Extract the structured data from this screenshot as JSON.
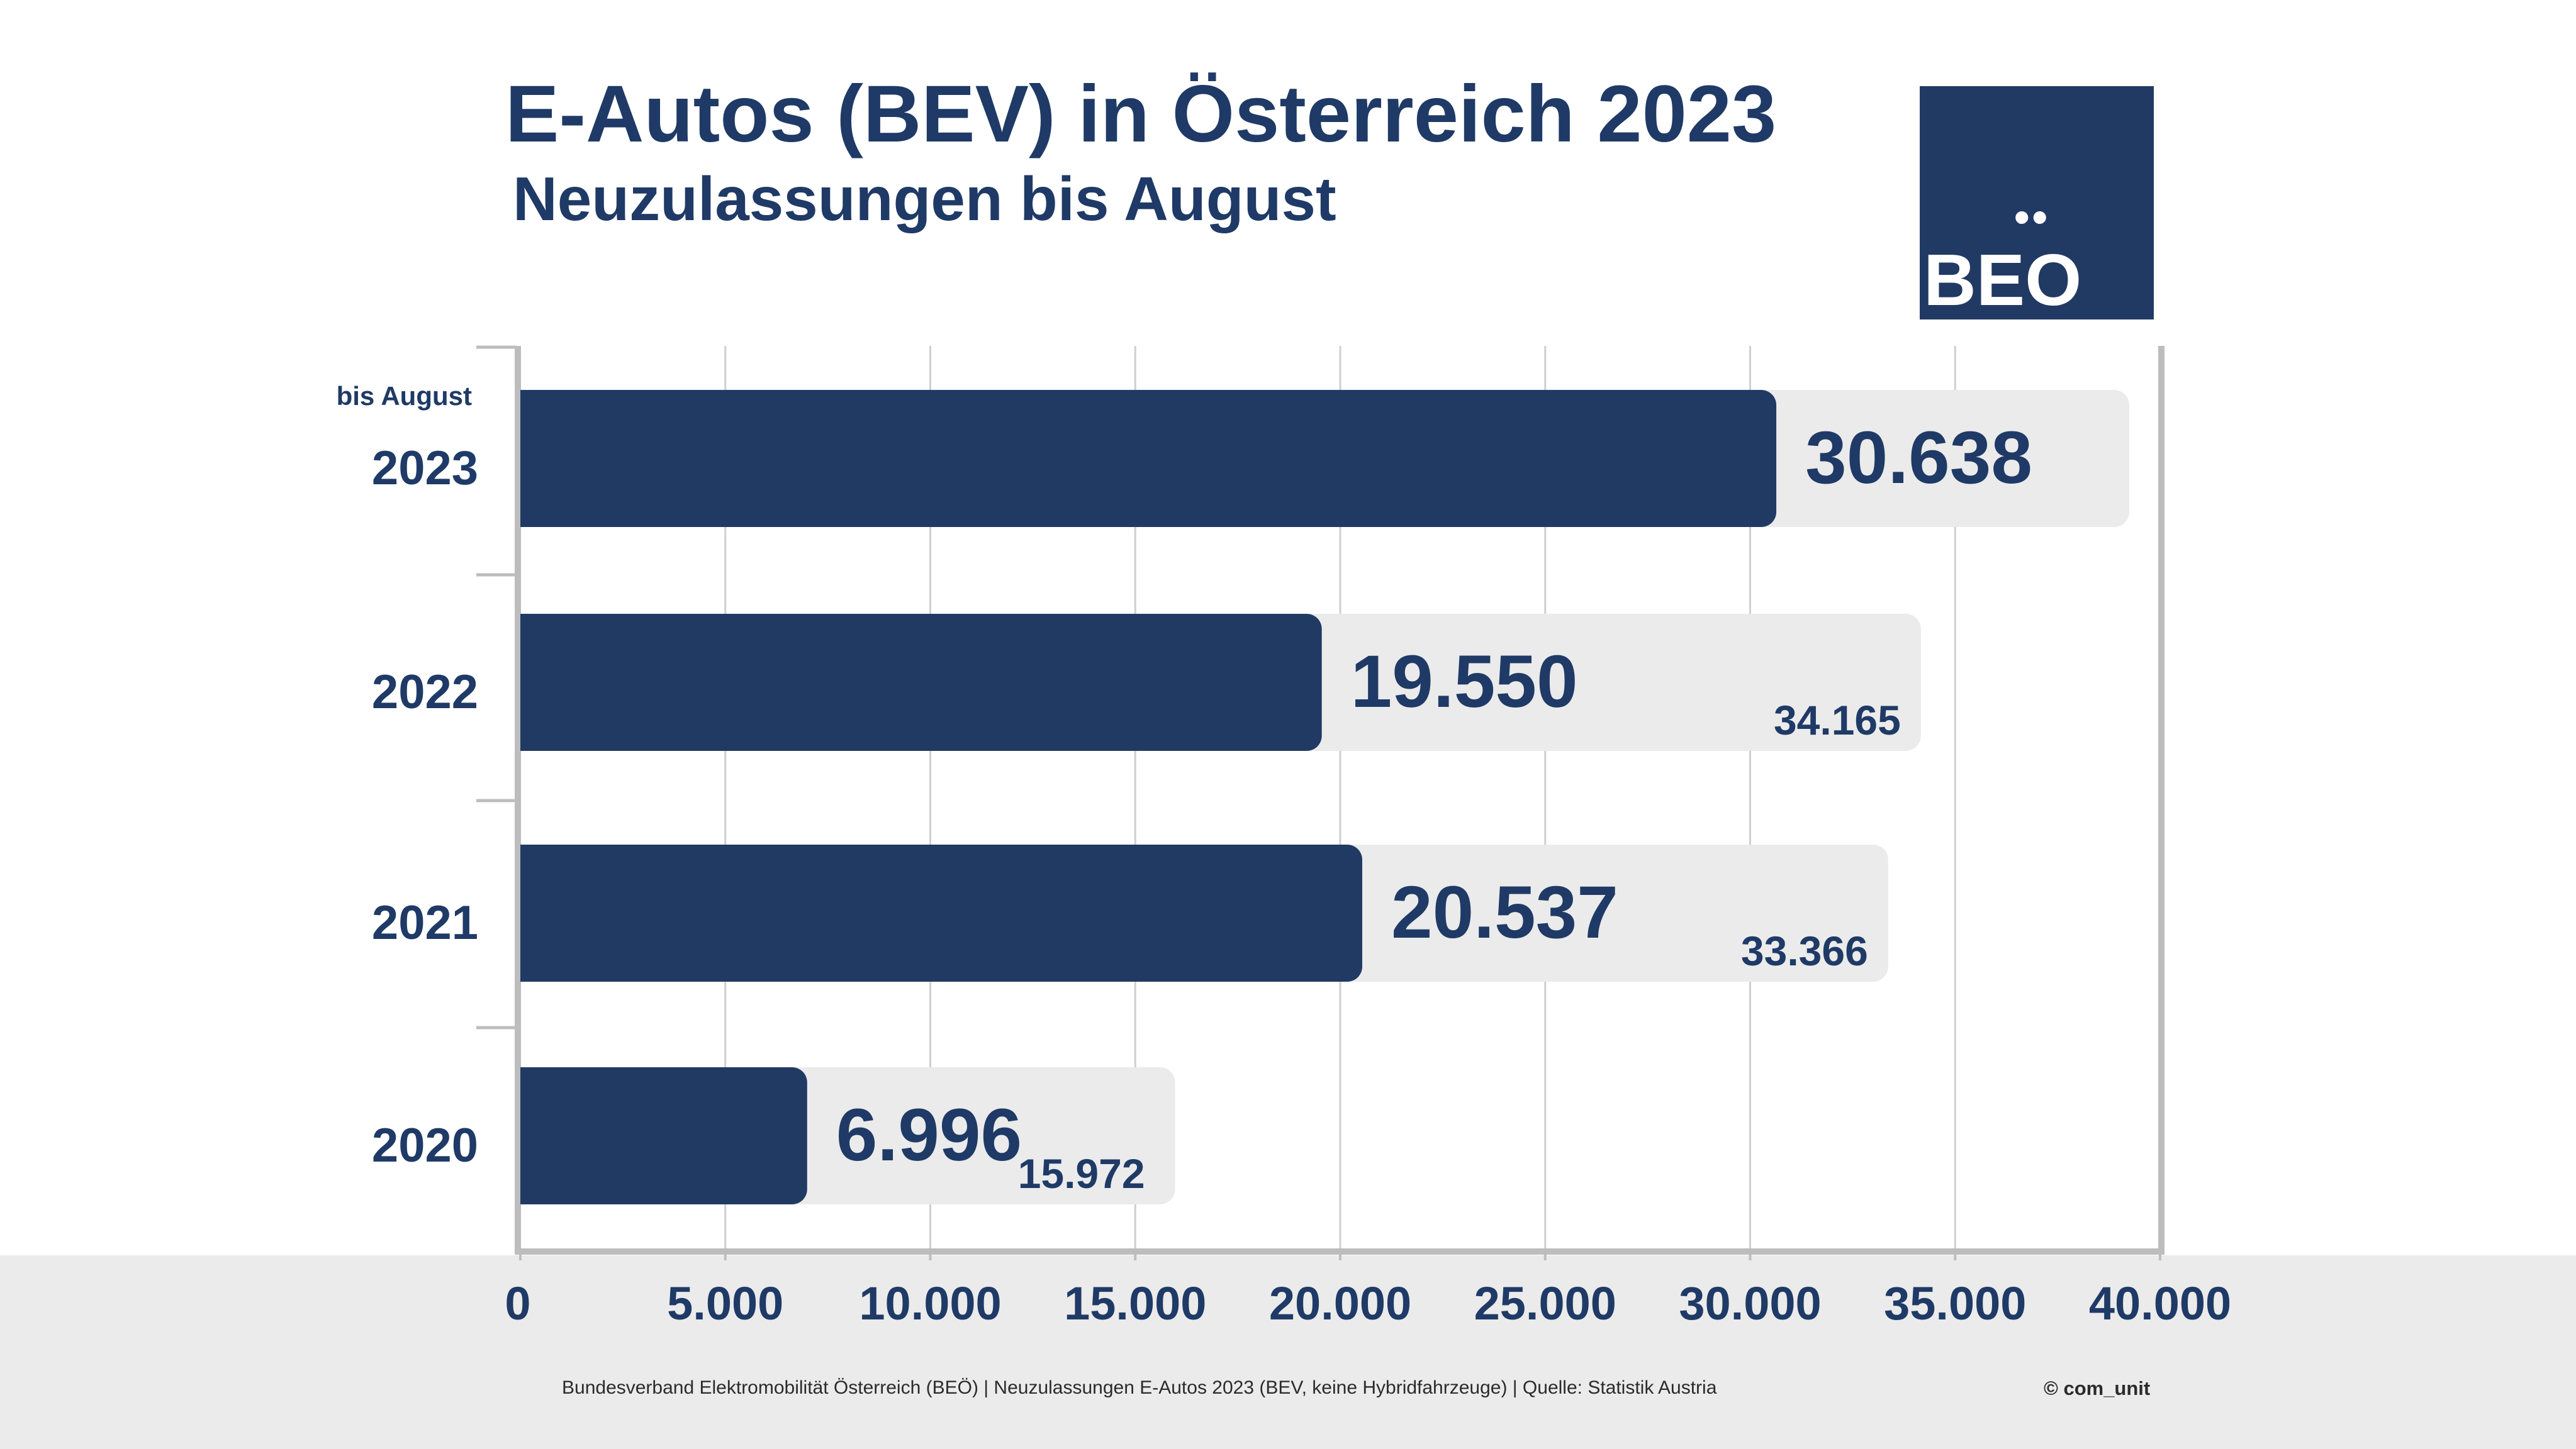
{
  "title": "E-Autos (BEV) in Österreich 2023",
  "subtitle": "Neuzulassungen bis August",
  "logo": {
    "text": "BEO",
    "dots": "••"
  },
  "footer": {
    "source": "Bundesverband Elektromobilität Österreich (BEÖ) | Neuzulassungen E-Autos 2023 (BEV, keine Hybridfahrzeuge) | Quelle: Statistik Austria",
    "copyright": "© com_unit"
  },
  "colors": {
    "bar": "#213a64",
    "background_bar": "#ebebeb",
    "text": "#1f3a66",
    "grid": "#cfcfcf",
    "axis": "#bdbdbd",
    "footer_band": "#ebebeb"
  },
  "chart_data": {
    "type": "bar",
    "orientation": "horizontal",
    "categories": [
      "2023",
      "2022",
      "2021",
      "2020"
    ],
    "category_notes": [
      "bis August",
      "",
      "",
      ""
    ],
    "series": [
      {
        "values": [
          30638,
          19550,
          20537,
          6996
        ],
        "labels": [
          "30.638",
          "19.550",
          "20.537",
          "6.996"
        ]
      },
      {
        "values": [
          null,
          34165,
          33366,
          15972
        ],
        "labels": [
          "",
          "34.165",
          "33.366",
          "15.972"
        ]
      }
    ],
    "xlim": [
      0,
      40000
    ],
    "x_ticks": [
      0,
      5000,
      10000,
      15000,
      20000,
      25000,
      30000,
      35000,
      40000
    ],
    "x_tick_labels": [
      "0",
      "5.000",
      "10.000",
      "15.000",
      "20.000",
      "25.000",
      "30.000",
      "35.000",
      "40.000"
    ],
    "grid": true,
    "legend": false
  }
}
